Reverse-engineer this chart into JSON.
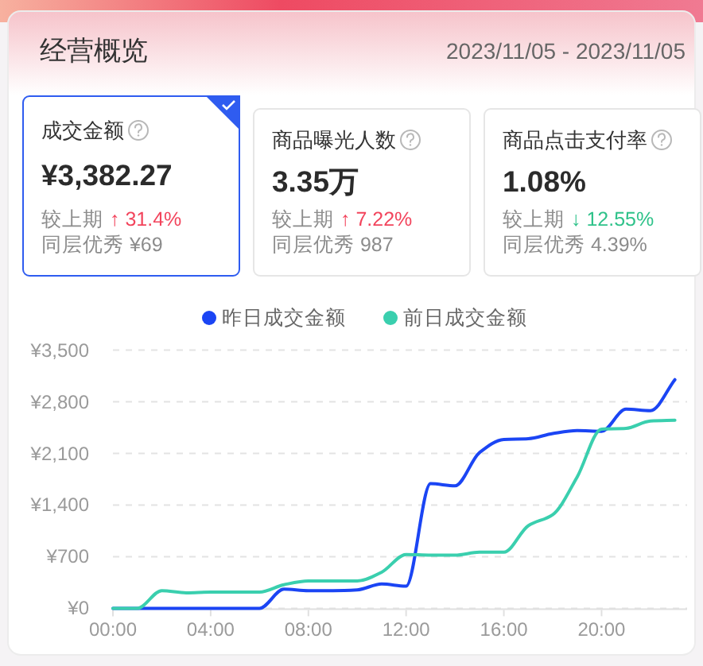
{
  "chart_data": [
    {
      "type": "other",
      "title": "经营概览",
      "subtitle": "2023/11/05 - 2023/11/05"
    },
    {
      "type": "other",
      "title": "成交金额",
      "annotations": [
        "¥3,382.27",
        "较上期",
        "↑ 31.4%",
        "同层优秀 ¥69"
      ],
      "color": "#f2445c"
    },
    {
      "type": "other",
      "title": "商品曝光人数",
      "annotations": [
        "3.35万",
        "较上期",
        "↑ 7.22%",
        "同层优秀 987"
      ],
      "color": "#f2445c"
    },
    {
      "type": "other",
      "title": "商品点击支付率",
      "annotations": [
        "1.08%",
        "较上期",
        "↓ 12.55%",
        "同层优秀 4.39%"
      ],
      "color": "#2fc28a"
    },
    {
      "type": "line",
      "x": [
        0,
        1,
        2,
        3,
        4,
        5,
        6,
        7,
        8,
        9,
        10,
        11,
        12,
        13,
        14,
        15,
        16,
        17,
        18,
        19,
        20,
        21,
        22,
        23
      ],
      "series": [
        {
          "name": "昨日成交金额",
          "color": "#1b45f4",
          "values": [
            0,
            0,
            0,
            0,
            0,
            0,
            0,
            260,
            240,
            240,
            250,
            330,
            300,
            1690,
            1660,
            2110,
            2290,
            2300,
            2370,
            2410,
            2400,
            2700,
            2680,
            3100
          ]
        },
        {
          "name": "前日成交金额",
          "color": "#3acfae",
          "values": [
            0,
            0,
            240,
            210,
            220,
            220,
            220,
            320,
            370,
            370,
            370,
            490,
            730,
            720,
            720,
            760,
            760,
            1120,
            1270,
            1780,
            2430,
            2440,
            2540,
            2550
          ]
        }
      ],
      "xlim": [
        0,
        23.5
      ],
      "xticks": [
        {
          "value": 0,
          "label": "00:00"
        },
        {
          "value": 4,
          "label": "04:00"
        },
        {
          "value": 8,
          "label": "08:00"
        },
        {
          "value": 12,
          "label": "12:00"
        },
        {
          "value": 16,
          "label": "16:00"
        },
        {
          "value": 20,
          "label": "20:00"
        }
      ],
      "ylim": [
        0,
        3500
      ],
      "yticks": [
        {
          "value": 0,
          "label": "¥0"
        },
        {
          "value": 700,
          "label": "¥700"
        },
        {
          "value": 1400,
          "label": "¥1,400"
        },
        {
          "value": 2100,
          "label": "¥2,100"
        },
        {
          "value": 2800,
          "label": "¥2,800"
        },
        {
          "value": 3500,
          "label": "¥3,500"
        }
      ],
      "grid": "y",
      "legend": "top"
    }
  ]
}
